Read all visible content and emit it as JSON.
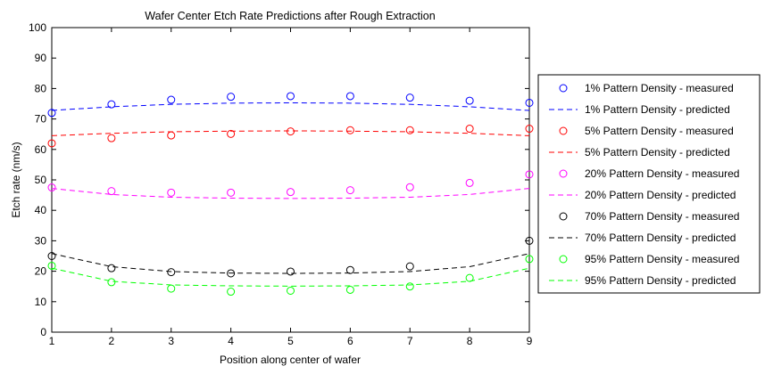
{
  "chart_data": {
    "type": "line",
    "title": "Wafer Center Etch Rate Predictions after Rough Extraction",
    "xlabel": "Position along center of wafer",
    "ylabel": "Etch rate (nm/s)",
    "xlim": [
      1,
      9
    ],
    "ylim": [
      0,
      100
    ],
    "xticks": [
      1,
      2,
      3,
      4,
      5,
      6,
      7,
      8,
      9
    ],
    "yticks": [
      0,
      10,
      20,
      30,
      40,
      50,
      60,
      70,
      80,
      90,
      100
    ],
    "grid": false,
    "legend_position": "right-outside",
    "x": [
      1,
      2,
      3,
      4,
      5,
      6,
      7,
      8,
      9
    ],
    "series": [
      {
        "name": "1% Pattern Density - measured",
        "kind": "markers",
        "color": "#0000ff",
        "values": [
          72.0,
          74.8,
          76.3,
          77.3,
          77.5,
          77.5,
          77.0,
          76.0,
          75.3
        ]
      },
      {
        "name": "1% Pattern Density - predicted",
        "kind": "dashed",
        "color": "#0000ff",
        "values": [
          72.8,
          74.0,
          74.8,
          75.2,
          75.3,
          75.2,
          74.8,
          74.0,
          72.8
        ]
      },
      {
        "name": "5% Pattern Density - measured",
        "kind": "markers",
        "color": "#ff0000",
        "values": [
          62.0,
          63.7,
          64.6,
          65.1,
          65.9,
          66.3,
          66.3,
          66.8,
          66.8
        ]
      },
      {
        "name": "5% Pattern Density - predicted",
        "kind": "dashed",
        "color": "#ff0000",
        "values": [
          64.5,
          65.3,
          65.8,
          66.0,
          66.1,
          66.0,
          65.8,
          65.3,
          64.5
        ]
      },
      {
        "name": "20% Pattern Density - measured",
        "kind": "markers",
        "color": "#ff00ff",
        "values": [
          47.5,
          46.3,
          45.8,
          45.8,
          46.0,
          46.6,
          47.6,
          49.0,
          51.8
        ]
      },
      {
        "name": "20% Pattern Density - predicted",
        "kind": "dashed",
        "color": "#ff00ff",
        "values": [
          47.2,
          45.2,
          44.3,
          44.0,
          43.9,
          44.0,
          44.3,
          45.2,
          47.2
        ]
      },
      {
        "name": "70% Pattern Density - measured",
        "kind": "markers",
        "color": "#000000",
        "values": [
          25.0,
          21.0,
          19.7,
          19.3,
          19.9,
          20.4,
          21.6,
          null,
          30.0
        ]
      },
      {
        "name": "70% Pattern Density - predicted",
        "kind": "dashed",
        "color": "#000000",
        "values": [
          25.8,
          21.5,
          19.9,
          19.4,
          19.3,
          19.4,
          19.9,
          21.5,
          25.8
        ]
      },
      {
        "name": "95% Pattern Density - measured",
        "kind": "markers",
        "color": "#00ff00",
        "values": [
          21.8,
          16.4,
          14.3,
          13.3,
          13.6,
          13.9,
          15.0,
          17.8,
          24.0
        ]
      },
      {
        "name": "95% Pattern Density - predicted",
        "kind": "dashed",
        "color": "#00ff00",
        "values": [
          21.0,
          16.7,
          15.5,
          15.2,
          15.1,
          15.2,
          15.5,
          16.7,
          21.0
        ]
      }
    ]
  }
}
